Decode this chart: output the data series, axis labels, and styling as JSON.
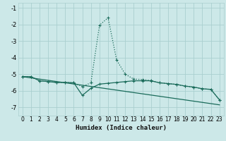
{
  "xlabel": "Humidex (Indice chaleur)",
  "background_color": "#cce8e8",
  "grid_color": "#aacfcf",
  "line_color": "#1a6b5a",
  "spine_color": "#aacfcf",
  "xlim": [
    -0.5,
    23.5
  ],
  "ylim": [
    -7.5,
    -0.7
  ],
  "yticks": [
    -7,
    -6,
    -5,
    -4,
    -3,
    -2,
    -1
  ],
  "xticks": [
    0,
    1,
    2,
    3,
    4,
    5,
    6,
    7,
    8,
    9,
    10,
    11,
    12,
    13,
    14,
    15,
    16,
    17,
    18,
    19,
    20,
    21,
    22,
    23
  ],
  "series1_x": [
    0,
    1,
    2,
    3,
    4,
    5,
    6,
    7,
    8,
    9,
    10,
    11,
    12,
    13,
    14,
    15,
    16,
    17,
    18,
    19,
    20,
    21,
    22,
    23
  ],
  "series1_y": [
    -5.15,
    -5.15,
    -5.4,
    -5.45,
    -5.5,
    -5.5,
    -5.52,
    -5.75,
    -5.52,
    -2.05,
    -1.6,
    -4.15,
    -5.0,
    -5.3,
    -5.32,
    -5.38,
    -5.52,
    -5.57,
    -5.62,
    -5.72,
    -5.78,
    -5.88,
    -5.92,
    -6.55
  ],
  "series2_x": [
    0,
    1,
    2,
    3,
    4,
    5,
    6,
    7,
    8,
    9,
    10,
    11,
    12,
    13,
    14,
    15,
    16,
    17,
    18,
    19,
    20,
    21,
    22,
    23
  ],
  "series2_y": [
    -5.15,
    -5.15,
    -5.4,
    -5.45,
    -5.5,
    -5.5,
    -5.52,
    -6.28,
    -5.85,
    -5.6,
    -5.55,
    -5.5,
    -5.45,
    -5.4,
    -5.4,
    -5.4,
    -5.52,
    -5.57,
    -5.62,
    -5.72,
    -5.78,
    -5.88,
    -5.92,
    -6.55
  ],
  "series3_x": [
    0,
    23
  ],
  "series3_y": [
    -5.15,
    -6.85
  ],
  "xlabel_fontsize": 6.5,
  "tick_fontsize": 5.5,
  "linewidth": 0.9,
  "markersize": 2.5
}
